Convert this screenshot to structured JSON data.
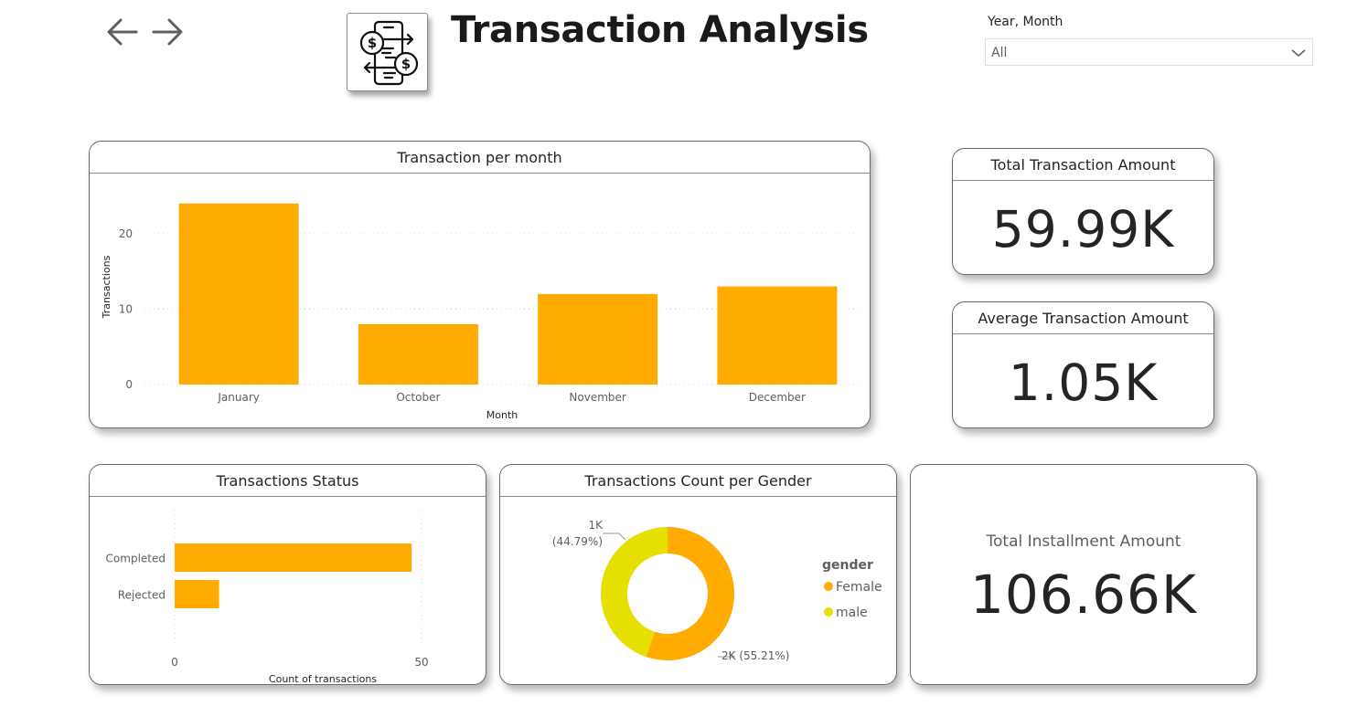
{
  "page": {
    "title": "Transaction Analysis",
    "nav": {
      "back_icon": "arrow-left-icon",
      "forward_icon": "arrow-right-icon"
    },
    "logo_icon": "money-transfer-phone-icon"
  },
  "slicer": {
    "label": "Year, Month",
    "value": "All"
  },
  "colors": {
    "accent": "#FFAB00",
    "male": "#E5E000",
    "text": "#252423"
  },
  "cards": {
    "total_transaction": {
      "label": "Total Transaction Amount",
      "value": "59.99K"
    },
    "average_transaction": {
      "label": "Average Transaction Amount",
      "value": "1.05K"
    },
    "total_installment": {
      "label": "Total Installment Amount",
      "value": "106.66K"
    }
  },
  "chart_data": [
    {
      "id": "per_month",
      "type": "bar",
      "title": "Transaction per month",
      "xlabel": "Month",
      "ylabel": "Transactions",
      "categories": [
        "January",
        "October",
        "November",
        "December"
      ],
      "values": [
        24,
        8,
        12,
        13
      ],
      "yticks": [
        "0",
        "10",
        "20"
      ],
      "ylim": [
        0,
        27
      ],
      "grid": true
    },
    {
      "id": "status",
      "type": "bar",
      "orientation": "horizontal",
      "title": "Transactions Status",
      "xlabel": "Count of transactions",
      "categories": [
        "Completed",
        "Rejected"
      ],
      "values": [
        48,
        9
      ],
      "xticks": [
        "0",
        "50"
      ],
      "xlim": [
        0,
        50
      ],
      "grid": true
    },
    {
      "id": "gender",
      "type": "pie",
      "title": "Transactions Count per Gender",
      "legend_title": "gender",
      "legend_position": "right",
      "slices": [
        {
          "label": "Female",
          "share": 55.21,
          "data_label": "2K (55.21%)"
        },
        {
          "label": "male",
          "share": 44.79,
          "data_label_value": "1K",
          "data_label_pct": "(44.79%)"
        }
      ]
    }
  ]
}
